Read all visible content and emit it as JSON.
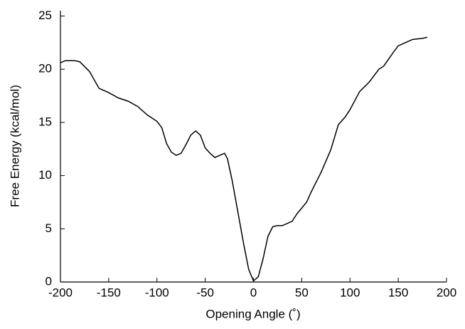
{
  "chart_data": {
    "type": "line",
    "x_label": "Opening Angle (˚)",
    "y_label": "Free Energy (kcal/mol)",
    "xlim": [
      -200,
      200
    ],
    "xticks": [
      -200,
      -150,
      -100,
      -50,
      0,
      50,
      100,
      150,
      200
    ],
    "ylim": [
      0,
      25.5
    ],
    "yticks": [
      0,
      5,
      10,
      15,
      20,
      25
    ],
    "series": [
      {
        "color": "#000000",
        "x": [
          -200,
          -195,
          -185,
          -180,
          -170,
          -160,
          -150,
          -140,
          -130,
          -120,
          -110,
          -100,
          -95,
          -90,
          -85,
          -80,
          -75,
          -70,
          -65,
          -60,
          -55,
          -50,
          -45,
          -40,
          -35,
          -30,
          -27,
          -22,
          -18,
          -15,
          -10,
          -5,
          0,
          5,
          10,
          15,
          20,
          25,
          30,
          40,
          45,
          55,
          60,
          70,
          80,
          88,
          95,
          100,
          110,
          120,
          130,
          135,
          145,
          150,
          160,
          165,
          175,
          180
        ],
        "values": [
          20.6,
          20.8,
          20.8,
          20.7,
          19.8,
          18.2,
          17.8,
          17.3,
          17.0,
          16.5,
          15.7,
          15.1,
          14.5,
          13.0,
          12.2,
          11.9,
          12.1,
          12.9,
          13.8,
          14.2,
          13.8,
          12.6,
          12.1,
          11.7,
          11.9,
          12.1,
          11.6,
          9.5,
          7.5,
          6.0,
          3.5,
          1.2,
          0.1,
          0.5,
          2.2,
          4.3,
          5.2,
          5.3,
          5.3,
          5.7,
          6.4,
          7.5,
          8.5,
          10.3,
          12.4,
          14.8,
          15.5,
          16.2,
          17.9,
          18.8,
          20.0,
          20.3,
          21.6,
          22.2,
          22.6,
          22.8,
          22.9,
          23.0
        ]
      }
    ]
  }
}
